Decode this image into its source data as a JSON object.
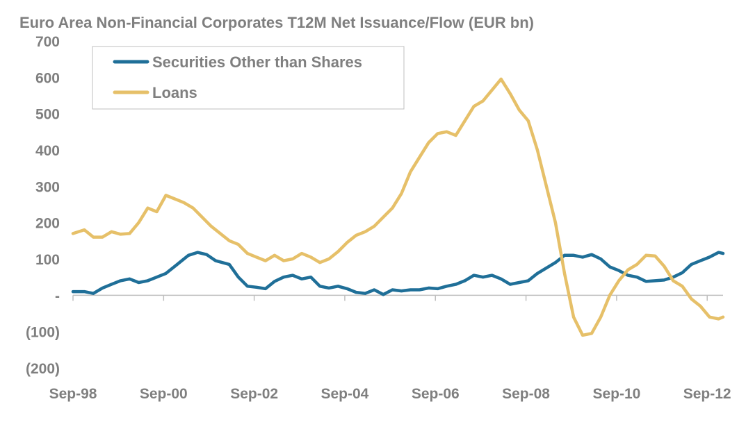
{
  "chart_data": {
    "type": "line",
    "title": "Euro Area Non-Financial Corporates T12M Net Issuance/Flow (EUR bn)",
    "xlabel": "",
    "ylabel": "",
    "ylim": [
      -200,
      700
    ],
    "y_ticks": [
      {
        "value": 700,
        "label": "700"
      },
      {
        "value": 600,
        "label": "600"
      },
      {
        "value": 500,
        "label": "500"
      },
      {
        "value": 400,
        "label": "400"
      },
      {
        "value": 300,
        "label": "300"
      },
      {
        "value": 200,
        "label": "200"
      },
      {
        "value": 100,
        "label": "100"
      },
      {
        "value": 0,
        "label": "-"
      },
      {
        "value": -100,
        "label": "(100)"
      },
      {
        "value": -200,
        "label": "(200)"
      }
    ],
    "x_ticks": [
      {
        "x": 1998.75,
        "label": "Sep-98"
      },
      {
        "x": 2000.75,
        "label": "Sep-00"
      },
      {
        "x": 2002.75,
        "label": "Sep-02"
      },
      {
        "x": 2004.75,
        "label": "Sep-04"
      },
      {
        "x": 2006.75,
        "label": "Sep-06"
      },
      {
        "x": 2008.75,
        "label": "Sep-08"
      },
      {
        "x": 2010.75,
        "label": "Sep-10"
      },
      {
        "x": 2012.75,
        "label": "Sep-12"
      }
    ],
    "xlim": [
      1998.75,
      2013.1
    ],
    "grid": false,
    "legend_position": "top-left",
    "series": [
      {
        "name": "Securities Other than Shares",
        "color": "#1f6f98",
        "points": [
          [
            1998.75,
            10
          ],
          [
            1999.0,
            10
          ],
          [
            1999.2,
            5
          ],
          [
            1999.4,
            20
          ],
          [
            1999.6,
            30
          ],
          [
            1999.8,
            40
          ],
          [
            2000.0,
            45
          ],
          [
            2000.2,
            35
          ],
          [
            2000.4,
            40
          ],
          [
            2000.6,
            50
          ],
          [
            2000.8,
            60
          ],
          [
            2001.0,
            80
          ],
          [
            2001.3,
            110
          ],
          [
            2001.5,
            118
          ],
          [
            2001.7,
            112
          ],
          [
            2001.9,
            95
          ],
          [
            2002.2,
            85
          ],
          [
            2002.4,
            50
          ],
          [
            2002.6,
            25
          ],
          [
            2002.8,
            22
          ],
          [
            2003.0,
            18
          ],
          [
            2003.2,
            38
          ],
          [
            2003.4,
            50
          ],
          [
            2003.6,
            55
          ],
          [
            2003.8,
            45
          ],
          [
            2004.0,
            50
          ],
          [
            2004.2,
            25
          ],
          [
            2004.4,
            20
          ],
          [
            2004.6,
            25
          ],
          [
            2004.8,
            18
          ],
          [
            2005.0,
            8
          ],
          [
            2005.2,
            5
          ],
          [
            2005.4,
            15
          ],
          [
            2005.6,
            2
          ],
          [
            2005.8,
            15
          ],
          [
            2006.0,
            12
          ],
          [
            2006.2,
            15
          ],
          [
            2006.4,
            15
          ],
          [
            2006.6,
            20
          ],
          [
            2006.8,
            18
          ],
          [
            2007.0,
            25
          ],
          [
            2007.2,
            30
          ],
          [
            2007.4,
            40
          ],
          [
            2007.6,
            55
          ],
          [
            2007.8,
            50
          ],
          [
            2008.0,
            55
          ],
          [
            2008.2,
            45
          ],
          [
            2008.4,
            30
          ],
          [
            2008.6,
            35
          ],
          [
            2008.8,
            40
          ],
          [
            2009.0,
            60
          ],
          [
            2009.2,
            75
          ],
          [
            2009.4,
            90
          ],
          [
            2009.6,
            110
          ],
          [
            2009.8,
            110
          ],
          [
            2010.0,
            105
          ],
          [
            2010.2,
            112
          ],
          [
            2010.4,
            100
          ],
          [
            2010.6,
            78
          ],
          [
            2010.8,
            68
          ],
          [
            2011.0,
            55
          ],
          [
            2011.2,
            50
          ],
          [
            2011.4,
            38
          ],
          [
            2011.6,
            40
          ],
          [
            2011.8,
            42
          ],
          [
            2012.0,
            50
          ],
          [
            2012.2,
            62
          ],
          [
            2012.4,
            85
          ],
          [
            2012.6,
            95
          ],
          [
            2012.8,
            105
          ],
          [
            2013.0,
            118
          ],
          [
            2013.1,
            115
          ]
        ]
      },
      {
        "name": "Loans",
        "color": "#e6c069",
        "points": [
          [
            1998.75,
            170
          ],
          [
            1999.0,
            180
          ],
          [
            1999.2,
            160
          ],
          [
            1999.4,
            160
          ],
          [
            1999.6,
            175
          ],
          [
            1999.8,
            168
          ],
          [
            2000.0,
            170
          ],
          [
            2000.2,
            200
          ],
          [
            2000.4,
            240
          ],
          [
            2000.6,
            230
          ],
          [
            2000.8,
            275
          ],
          [
            2001.0,
            265
          ],
          [
            2001.2,
            255
          ],
          [
            2001.4,
            240
          ],
          [
            2001.6,
            215
          ],
          [
            2001.8,
            190
          ],
          [
            2002.0,
            170
          ],
          [
            2002.2,
            150
          ],
          [
            2002.4,
            140
          ],
          [
            2002.6,
            115
          ],
          [
            2002.8,
            105
          ],
          [
            2003.0,
            95
          ],
          [
            2003.2,
            110
          ],
          [
            2003.4,
            95
          ],
          [
            2003.6,
            100
          ],
          [
            2003.8,
            115
          ],
          [
            2004.0,
            105
          ],
          [
            2004.2,
            90
          ],
          [
            2004.4,
            100
          ],
          [
            2004.6,
            120
          ],
          [
            2004.8,
            145
          ],
          [
            2005.0,
            165
          ],
          [
            2005.2,
            175
          ],
          [
            2005.4,
            190
          ],
          [
            2005.6,
            215
          ],
          [
            2005.8,
            240
          ],
          [
            2006.0,
            280
          ],
          [
            2006.2,
            340
          ],
          [
            2006.4,
            380
          ],
          [
            2006.6,
            420
          ],
          [
            2006.8,
            445
          ],
          [
            2007.0,
            450
          ],
          [
            2007.2,
            440
          ],
          [
            2007.4,
            480
          ],
          [
            2007.6,
            520
          ],
          [
            2007.8,
            535
          ],
          [
            2008.0,
            565
          ],
          [
            2008.2,
            595
          ],
          [
            2008.4,
            555
          ],
          [
            2008.6,
            510
          ],
          [
            2008.8,
            480
          ],
          [
            2009.0,
            400
          ],
          [
            2009.2,
            300
          ],
          [
            2009.4,
            200
          ],
          [
            2009.6,
            60
          ],
          [
            2009.8,
            -60
          ],
          [
            2010.0,
            -110
          ],
          [
            2010.2,
            -105
          ],
          [
            2010.4,
            -60
          ],
          [
            2010.6,
            0
          ],
          [
            2010.8,
            40
          ],
          [
            2011.0,
            70
          ],
          [
            2011.2,
            85
          ],
          [
            2011.4,
            110
          ],
          [
            2011.6,
            108
          ],
          [
            2011.8,
            80
          ],
          [
            2012.0,
            40
          ],
          [
            2012.2,
            25
          ],
          [
            2012.4,
            -10
          ],
          [
            2012.6,
            -30
          ],
          [
            2012.8,
            -60
          ],
          [
            2013.0,
            -65
          ],
          [
            2013.1,
            -60
          ]
        ]
      }
    ]
  }
}
